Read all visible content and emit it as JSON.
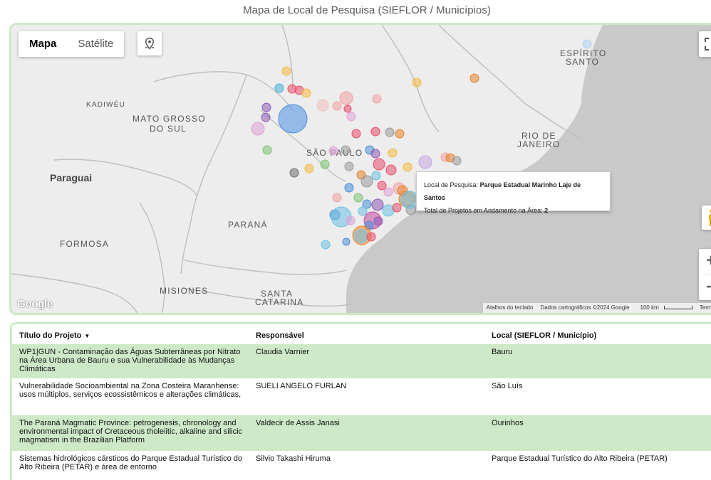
{
  "page": {
    "title": "Mapa de Local de Pesquisa (SIEFLOR / Municípios)"
  },
  "map": {
    "type_buttons": {
      "map": "Mapa",
      "satellite": "Satélite"
    },
    "place_labels": {
      "espirito_santo_1": "ESPÍRITO",
      "espirito_santo_2": "SANTO",
      "kadiweu": "KADIWÉU",
      "mato_grosso_1": "MATO GROSSO",
      "mato_grosso_2": "DO SUL",
      "rio_1": "RIO DE",
      "rio_2": "JANEIRO",
      "sao_paulo": "SÃO PAULO",
      "paraguai": "Paraguai",
      "parana": "PARANÁ",
      "formosa": "FORMOSA",
      "misiones": "MISIONES",
      "santa_catarina_1": "SANTA",
      "santa_catarina_2": "CATARINA"
    },
    "tooltip": {
      "local_label": "Local de Pesquisa:",
      "local_value": "Parque Estadual Marinho Laje de Santos",
      "total_label": "Total de Projetos em Andamento na Área:",
      "total_value": "2"
    },
    "google_logo": "Google",
    "attribution": {
      "shortcuts": "Atalhos do teclado",
      "data": "Dados cartográficos ©2024 Google",
      "scale": "100 km",
      "terms": "Termos"
    },
    "zoom_in": "+",
    "zoom_out": "−",
    "icons": {
      "locate": "location-pin-icon",
      "fullscreen": "fullscreen-icon",
      "pegman": "pegman-icon"
    }
  },
  "table": {
    "headers": {
      "title": "Título do Projeto",
      "responsible": "Responsável",
      "location": "Local (SIEFLOR / Município)"
    },
    "rows": [
      {
        "title": "WP1|GUN - Contaminação das Águas Subterrâneas por Nitrato na Área Urbana de Bauru e sua Vulnerabilidade às Mudanças Climáticas",
        "responsible": "Claudia Varnier",
        "location": "Bauru"
      },
      {
        "title": "Vulnerabilidade Socioambiental na Zona Costeira Maranhense: usos múltiplos, serviços ecossistêmicos e alterações climáticas,",
        "responsible": "SUELI ANGELO FURLAN",
        "location": "São Luís"
      },
      {
        "title": "The Paraná Magmatic Province: petrogenesis, chronology and environmental impact of Cretaceous tholeiitic, alkaline and silicic magmatism in the Brazilian Platform",
        "responsible": "Valdecir de Assis Janasi",
        "location": "Ourinhos"
      },
      {
        "title": "Sistemas hidrológicos cársticos do Parque Estadual Turístico do Alto Ribeira (PETAR) e área de entorno",
        "responsible": "Silvio Takashi Hiruma",
        "location": "Parque Estadual Turístico do Alto Ribeira (PETAR)"
      }
    ]
  }
}
